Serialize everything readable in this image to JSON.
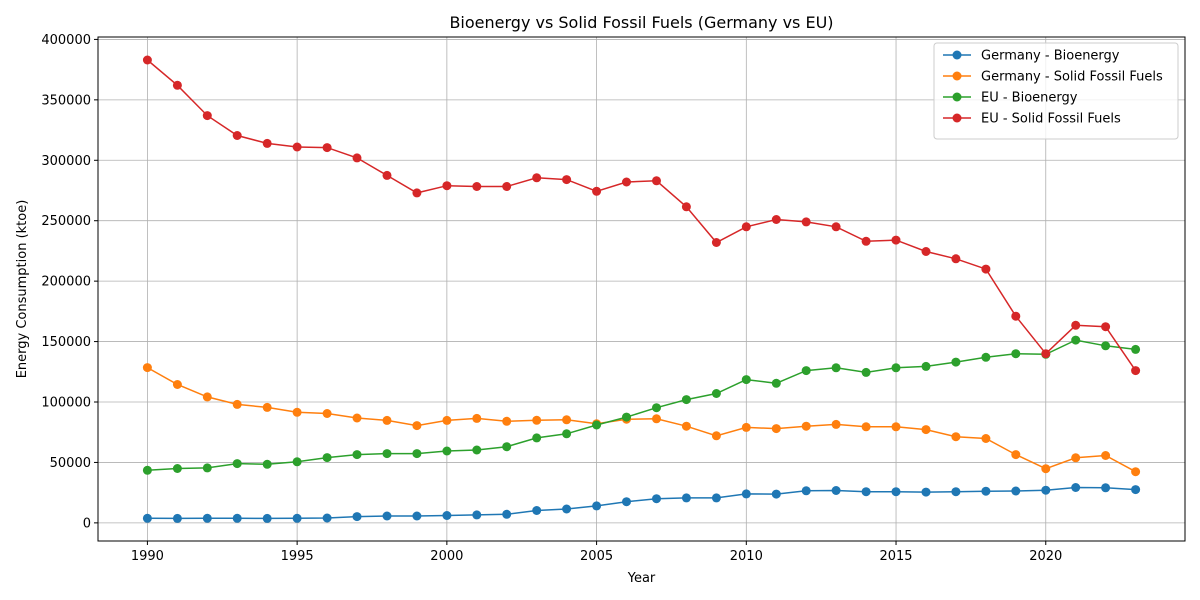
{
  "chart_data": {
    "type": "line",
    "title": "Bioenergy vs Solid Fossil Fuels (Germany vs EU)",
    "xlabel": "Year",
    "ylabel": "Energy Consumption (ktoe)",
    "xlim": [
      1988.35,
      2024.65
    ],
    "ylim": [
      -15000,
      402000
    ],
    "xticks": [
      1990,
      1995,
      2000,
      2005,
      2010,
      2015,
      2020
    ],
    "yticks": [
      0,
      50000,
      100000,
      150000,
      200000,
      250000,
      300000,
      350000,
      400000
    ],
    "grid": true,
    "legend_position": "top-right",
    "x": [
      1990,
      1991,
      1992,
      1993,
      1994,
      1995,
      1996,
      1997,
      1998,
      1999,
      2000,
      2001,
      2002,
      2003,
      2004,
      2005,
      2006,
      2007,
      2008,
      2009,
      2010,
      2011,
      2012,
      2013,
      2014,
      2015,
      2016,
      2017,
      2018,
      2019,
      2020,
      2021,
      2022,
      2023
    ],
    "series": [
      {
        "name": "Germany - Bioenergy",
        "color": "#1f77b4",
        "values": [
          3800,
          3700,
          3800,
          3800,
          3700,
          3800,
          4000,
          5200,
          5700,
          5700,
          6100,
          6600,
          7100,
          10200,
          11500,
          14000,
          17500,
          20000,
          20700,
          20700,
          24000,
          23800,
          26500,
          26800,
          25800,
          25800,
          25500,
          25800,
          26200,
          26400,
          27000,
          29300,
          29000,
          27500
        ]
      },
      {
        "name": "Germany - Solid Fossil Fuels",
        "color": "#ff7f0e",
        "values": [
          128500,
          114500,
          104200,
          98000,
          95500,
          91500,
          90500,
          86800,
          84800,
          80500,
          84800,
          86400,
          84000,
          84900,
          85300,
          82000,
          85800,
          86100,
          80000,
          72000,
          79000,
          78000,
          80000,
          81500,
          79500,
          79500,
          77200,
          71300,
          69800,
          56500,
          44800,
          53800,
          55700,
          42300
        ]
      },
      {
        "name": "EU - Bioenergy",
        "color": "#2ca02c",
        "values": [
          43500,
          45000,
          45500,
          49000,
          48500,
          50500,
          54000,
          56500,
          57300,
          57300,
          59500,
          60300,
          63000,
          70300,
          73700,
          81000,
          87500,
          95300,
          102000,
          107000,
          118500,
          115500,
          126000,
          128300,
          124500,
          128300,
          129500,
          133000,
          137000,
          140000,
          139500,
          151200,
          146500,
          143500
        ]
      },
      {
        "name": "EU - Solid Fossil Fuels",
        "color": "#d62728",
        "values": [
          383000,
          362000,
          337000,
          320500,
          314000,
          311000,
          310500,
          302000,
          287500,
          273000,
          279000,
          278300,
          278300,
          285500,
          284000,
          274300,
          282000,
          283000,
          261500,
          232000,
          245000,
          251000,
          249000,
          245000,
          233000,
          234000,
          224500,
          218500,
          210000,
          171000,
          140000,
          163500,
          162300,
          126000
        ]
      }
    ]
  }
}
